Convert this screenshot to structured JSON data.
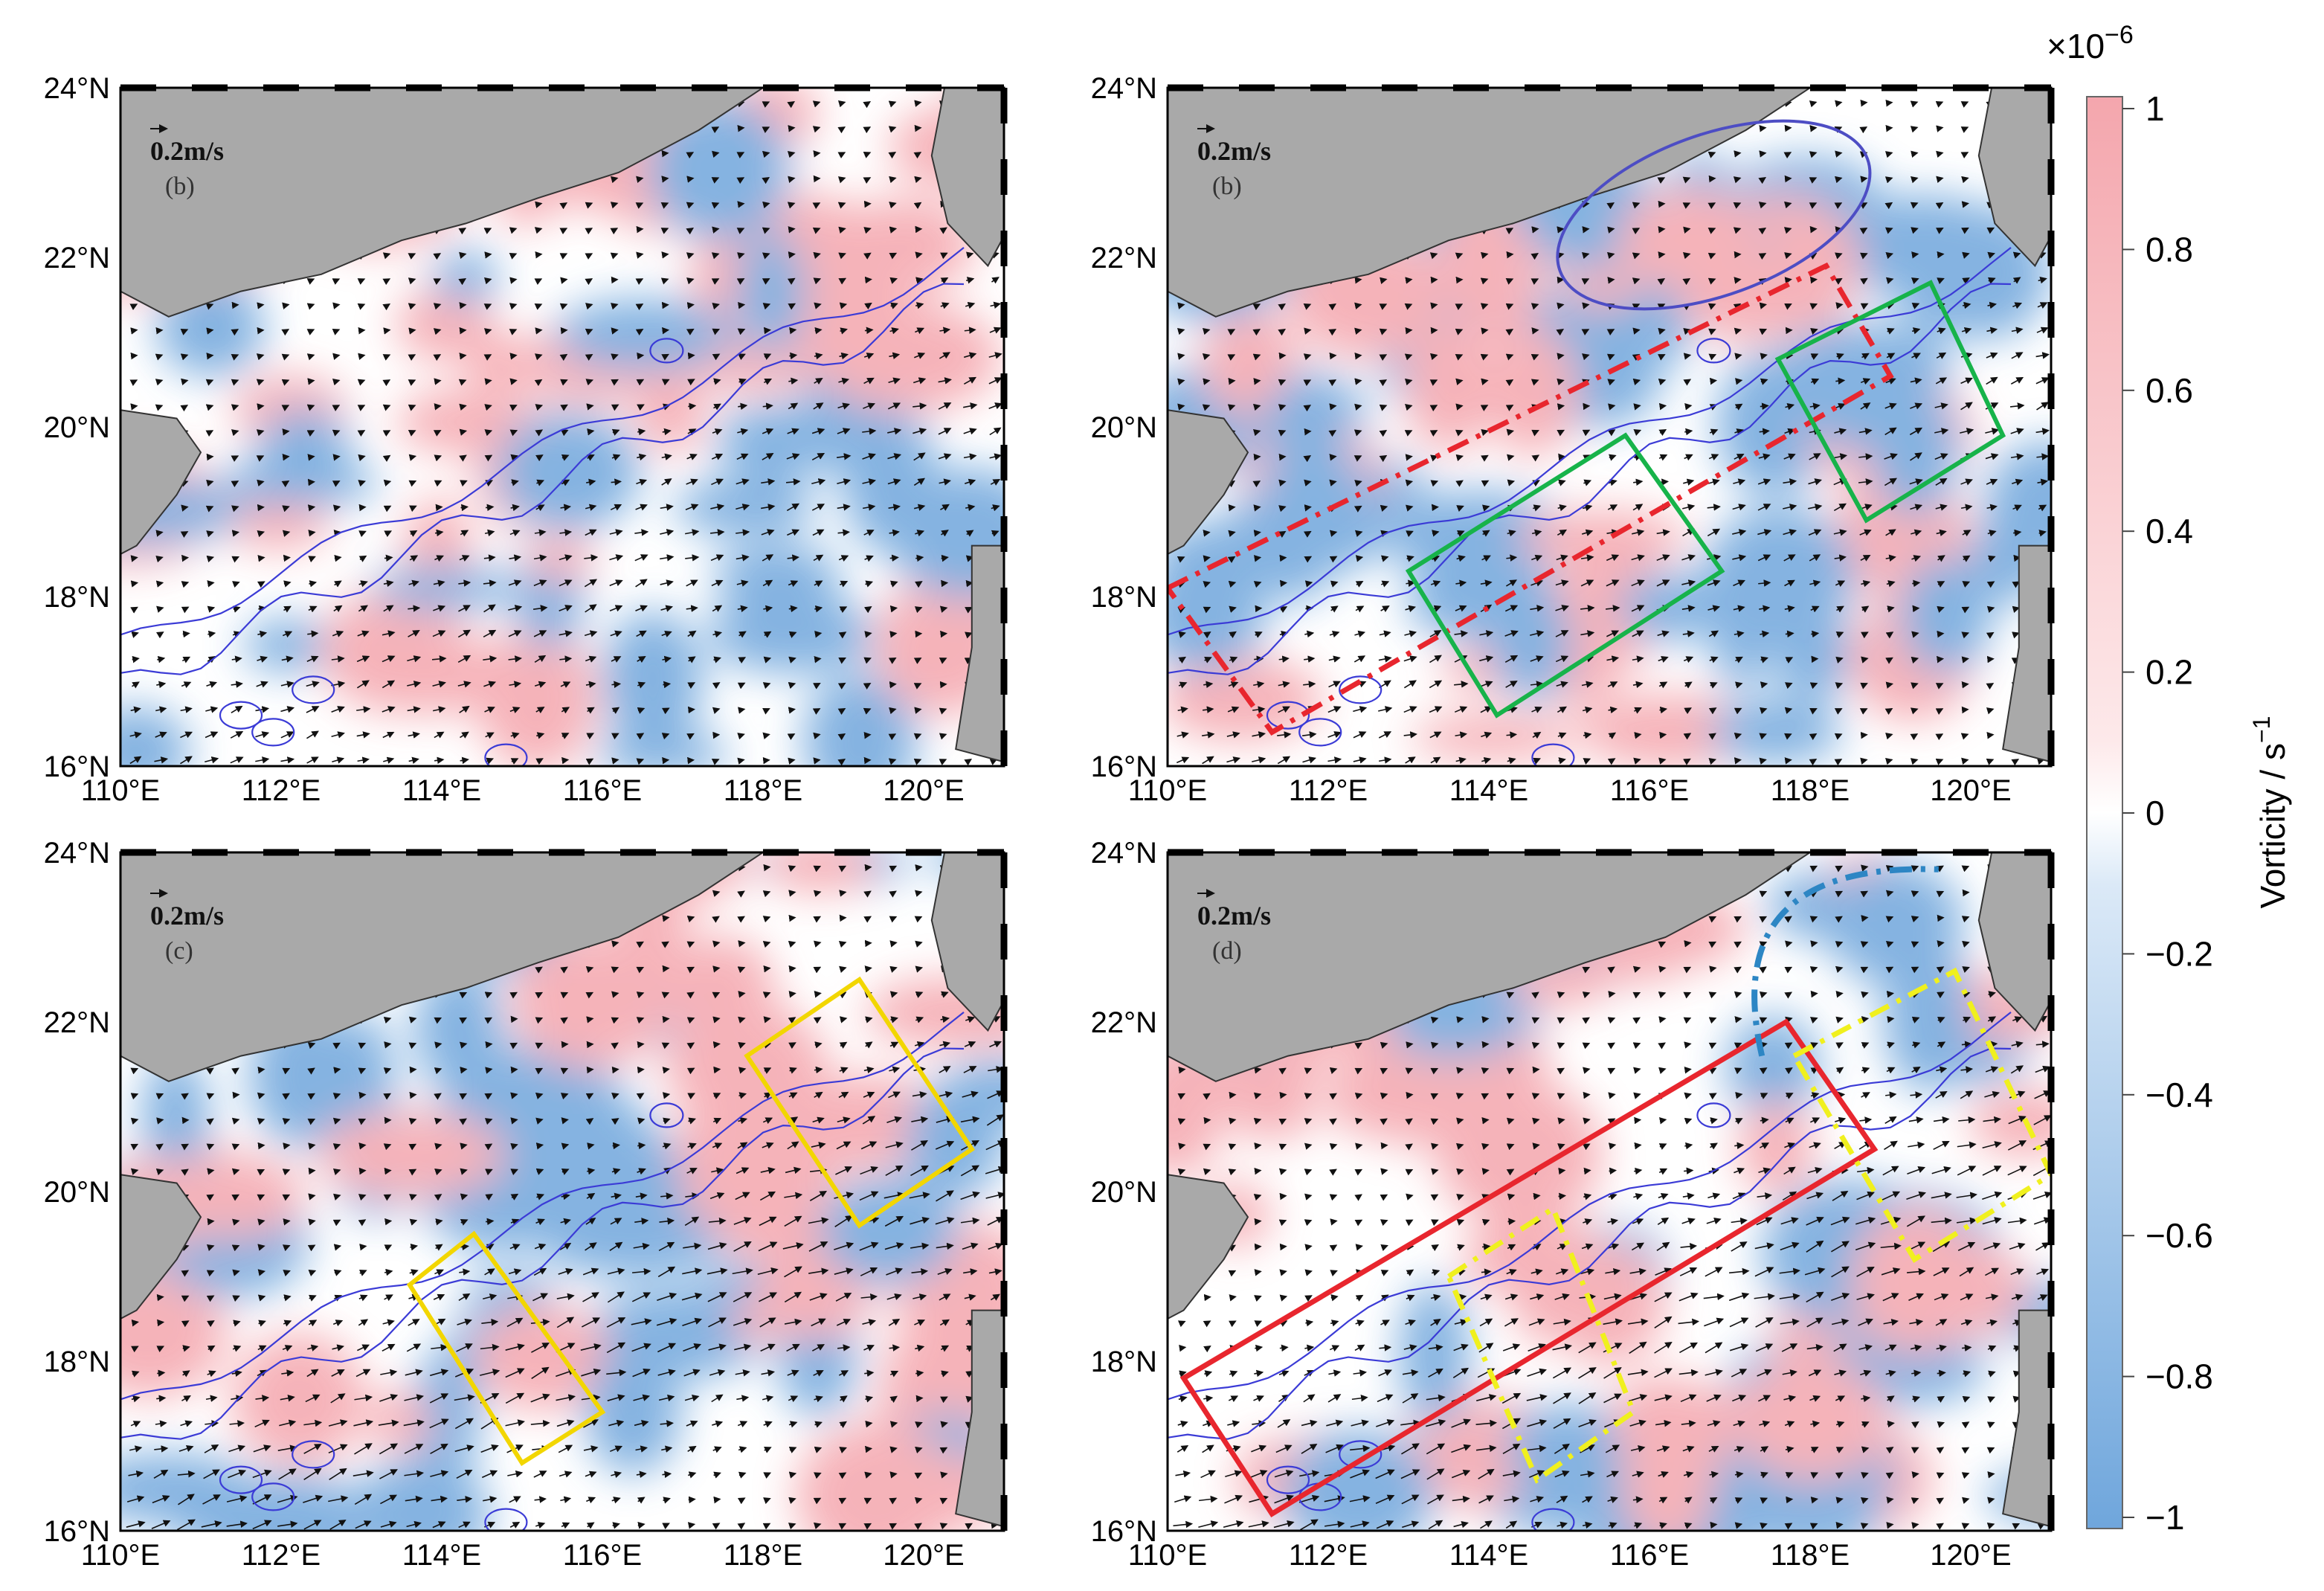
{
  "figure": {
    "panels": [
      {
        "id": "top-left",
        "label": "(b)",
        "scale_label": "0.2m/s"
      },
      {
        "id": "top-right",
        "label": "(b)",
        "scale_label": "0.2m/s"
      },
      {
        "id": "bottom-left",
        "label": "(c)",
        "scale_label": "0.2m/s"
      },
      {
        "id": "bottom-right",
        "label": "(d)",
        "scale_label": "0.2m/s"
      }
    ],
    "lat_ticks": [
      "24°N",
      "22°N",
      "20°N",
      "18°N",
      "16°N"
    ],
    "lon_ticks": [
      "110°E",
      "112°E",
      "114°E",
      "116°E",
      "118°E",
      "120°E"
    ],
    "lat_values": [
      24,
      22,
      20,
      18,
      16
    ],
    "lon_values": [
      110,
      112,
      114,
      116,
      118,
      120
    ],
    "lon_range": [
      110,
      121
    ],
    "lat_range": [
      16,
      24
    ],
    "colorbar": {
      "multiplier": "×10",
      "exponent": "−6",
      "title": "Vorticity / s",
      "title_exp": "−1",
      "ticks": [
        "1",
        "0.8",
        "0.6",
        "0.4",
        "0.2",
        "0",
        "−0.2",
        "−0.4",
        "−0.6",
        "−0.8",
        "−1"
      ],
      "tick_values": [
        1,
        0.8,
        0.6,
        0.4,
        0.2,
        0,
        -0.2,
        -0.4,
        -0.6,
        -0.8,
        -1
      ],
      "colors": {
        "positive": "#f4a6ad",
        "zero": "#ffffff",
        "negative": "#6fa6dc"
      }
    },
    "colors": {
      "land": "#a9a9a9",
      "isobath": "#3b3bd6",
      "box_green": "#17b34a",
      "box_yellow": "#f2d600",
      "box_red": "#e8262e",
      "dash_red": "#e8262e",
      "dash_yellow": "#f0f01e",
      "dash_blue": "#2d86c4",
      "ellipse_blue": "#4d4dc4"
    }
  }
}
